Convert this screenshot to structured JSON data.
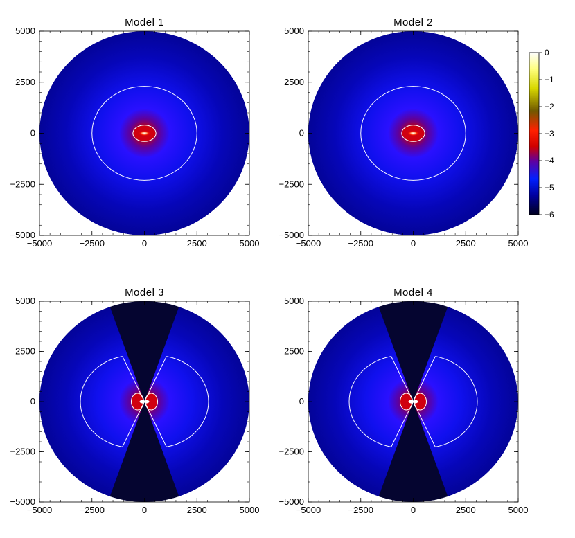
{
  "chart_data": {
    "type": "heatmap",
    "panels": [
      {
        "title": "Model 1",
        "cavity": false,
        "blob": "elongated"
      },
      {
        "title": "Model 2",
        "cavity": false,
        "blob": "elongated"
      },
      {
        "title": "Model 3",
        "cavity": true,
        "cavity_half_angle_deg": 20,
        "blob": "double"
      },
      {
        "title": "Model 4",
        "cavity": true,
        "cavity_half_angle_deg": 20,
        "blob": "double"
      }
    ],
    "xlim": [
      -5000,
      5000
    ],
    "ylim": [
      -5000,
      5000
    ],
    "x_ticks": [
      -5000,
      -2500,
      0,
      2500,
      5000
    ],
    "y_ticks": [
      -5000,
      -2500,
      0,
      2500,
      5000
    ],
    "x_tick_labels": [
      "−5000",
      "−2500",
      "0",
      "2500",
      "5000"
    ],
    "y_tick_labels": [
      "−5000",
      "−2500",
      "0",
      "2500",
      "5000"
    ],
    "disk_radius": 5000,
    "contour_levels": [
      {
        "radius_x": 2500,
        "radius_y": 2300
      },
      {
        "radius_x": 550,
        "radius_y": 400
      }
    ],
    "colorbar": {
      "range": [
        -6,
        0
      ],
      "ticks": [
        0,
        -1,
        -2,
        -3,
        -4,
        -5,
        -6
      ],
      "tick_labels": [
        "0",
        "−1",
        "−2",
        "−3",
        "−4",
        "−5",
        "−6"
      ],
      "colors": [
        "#000030",
        "#0000c0",
        "#0020ff",
        "#400080",
        "#c00000",
        "#ff2000",
        "#606000",
        "#e0e000",
        "#ffffff"
      ]
    }
  }
}
